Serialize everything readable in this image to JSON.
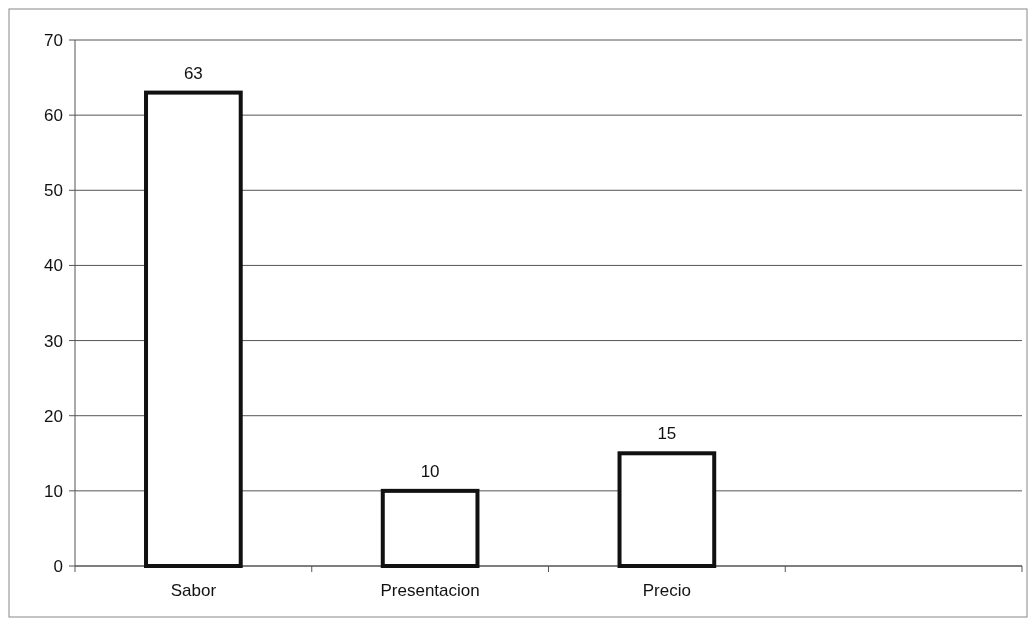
{
  "chart_data": {
    "type": "bar",
    "categories": [
      "Sabor",
      "Presentacion",
      "Precio",
      null
    ],
    "values": [
      63,
      10,
      15,
      null
    ],
    "color": "#ffffff",
    "ylim": [
      0,
      70
    ],
    "yticks": [
      0,
      10,
      20,
      30,
      40,
      50,
      60,
      70
    ],
    "grid": "y",
    "data_labels": true
  }
}
